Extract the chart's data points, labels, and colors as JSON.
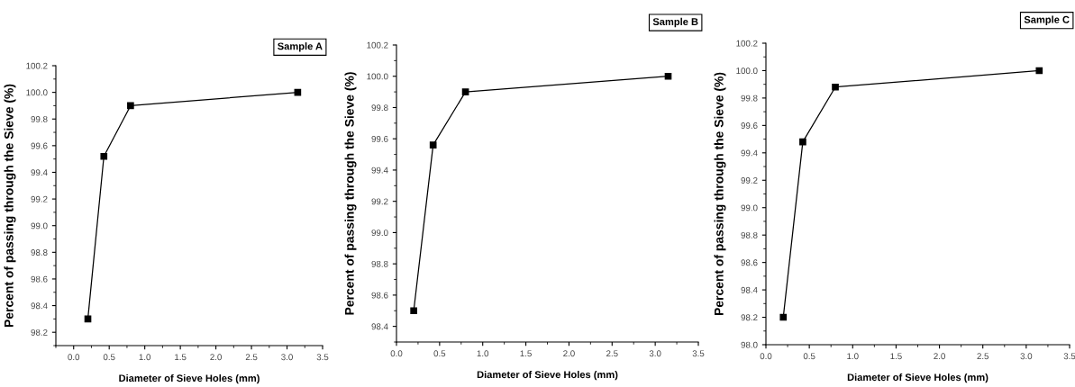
{
  "chart_data": [
    {
      "type": "line",
      "title": "Sample A",
      "xlabel": "Diameter of Sieve Holes (mm)",
      "ylabel": "Percent of passing through the Sieve (%)",
      "marker": "square",
      "line_style": "solid",
      "grid": false,
      "legend": false,
      "x": [
        0.2,
        0.425,
        0.8,
        3.15
      ],
      "series": [
        {
          "color": "#000000",
          "values": [
            98.3,
            99.52,
            99.9,
            100.0
          ]
        }
      ],
      "xlim": [
        -0.25,
        3.5
      ],
      "ylim": [
        98.1,
        100.2
      ],
      "xticks": [
        {
          "value": -0.25,
          "label": null
        },
        {
          "value": 0,
          "label": "0.0"
        },
        {
          "value": 0.25,
          "label": null
        },
        0.5,
        {
          "value": 0.75,
          "label": null
        },
        {
          "value": 1,
          "label": "1.0"
        },
        {
          "value": 1.25,
          "label": null
        },
        1.5,
        {
          "value": 1.75,
          "label": null
        },
        {
          "value": 2,
          "label": "2.0"
        },
        {
          "value": 2.25,
          "label": null
        },
        2.5,
        {
          "value": 2.75,
          "label": null
        },
        {
          "value": 3,
          "label": "3.0"
        },
        {
          "value": 3.25,
          "label": null
        },
        3.5
      ],
      "yticks": [
        {
          "value": 98.1,
          "label": null
        },
        98.2,
        {
          "value": 98.3,
          "label": null
        },
        98.4,
        {
          "value": 98.5,
          "label": null
        },
        98.6,
        {
          "value": 98.7,
          "label": null
        },
        98.8,
        {
          "value": 98.9,
          "label": null
        },
        {
          "value": 99,
          "label": "99.0"
        },
        {
          "value": 99.1,
          "label": null
        },
        99.2,
        {
          "value": 99.3,
          "label": null
        },
        99.4,
        {
          "value": 99.5,
          "label": null
        },
        99.6,
        {
          "value": 99.7,
          "label": null
        },
        99.8,
        {
          "value": 99.9,
          "label": null
        },
        {
          "value": 100,
          "label": "100.0"
        },
        {
          "value": 100.1,
          "label": null
        },
        100.2
      ]
    },
    {
      "type": "line",
      "title": "Sample B",
      "xlabel": "Diameter of Sieve Holes (mm)",
      "ylabel": "Percent of passing through the Sieve (%)",
      "marker": "square",
      "line_style": "solid",
      "grid": false,
      "legend": false,
      "x": [
        0.2,
        0.425,
        0.8,
        3.15
      ],
      "series": [
        {
          "color": "#000000",
          "values": [
            98.5,
            99.56,
            99.9,
            100.0
          ]
        }
      ],
      "xlim": [
        0.0,
        3.5
      ],
      "ylim": [
        98.3,
        100.2
      ],
      "xticks": [
        {
          "value": 0,
          "label": "0.0"
        },
        {
          "value": 0.25,
          "label": null
        },
        0.5,
        {
          "value": 0.75,
          "label": null
        },
        {
          "value": 1,
          "label": "1.0"
        },
        {
          "value": 1.25,
          "label": null
        },
        1.5,
        {
          "value": 1.75,
          "label": null
        },
        {
          "value": 2,
          "label": "2.0"
        },
        {
          "value": 2.25,
          "label": null
        },
        2.5,
        {
          "value": 2.75,
          "label": null
        },
        {
          "value": 3,
          "label": "3.0"
        },
        {
          "value": 3.25,
          "label": null
        },
        3.5
      ],
      "yticks": [
        {
          "value": 98.3,
          "label": null
        },
        98.4,
        {
          "value": 98.5,
          "label": null
        },
        98.6,
        {
          "value": 98.7,
          "label": null
        },
        98.8,
        {
          "value": 98.9,
          "label": null
        },
        {
          "value": 99,
          "label": "99.0"
        },
        {
          "value": 99.1,
          "label": null
        },
        99.2,
        {
          "value": 99.3,
          "label": null
        },
        99.4,
        {
          "value": 99.5,
          "label": null
        },
        99.6,
        {
          "value": 99.7,
          "label": null
        },
        99.8,
        {
          "value": 99.9,
          "label": null
        },
        {
          "value": 100,
          "label": "100.0"
        },
        {
          "value": 100.1,
          "label": null
        },
        100.2
      ]
    },
    {
      "type": "line",
      "title": "Sample C",
      "xlabel": "Diameter of Sieve Holes (mm)",
      "ylabel": "Percent of passing through the Sieve (%)",
      "marker": "square",
      "line_style": "solid",
      "grid": false,
      "legend": false,
      "x": [
        0.2,
        0.425,
        0.8,
        3.15
      ],
      "series": [
        {
          "color": "#000000",
          "values": [
            98.2,
            99.48,
            99.88,
            100.0
          ]
        }
      ],
      "xlim": [
        0.0,
        3.5
      ],
      "ylim": [
        98.0,
        100.2
      ],
      "xticks": [
        {
          "value": 0,
          "label": "0.0"
        },
        {
          "value": 0.25,
          "label": null
        },
        0.5,
        {
          "value": 0.75,
          "label": null
        },
        {
          "value": 1,
          "label": "1.0"
        },
        {
          "value": 1.25,
          "label": null
        },
        1.5,
        {
          "value": 1.75,
          "label": null
        },
        {
          "value": 2,
          "label": "2.0"
        },
        {
          "value": 2.25,
          "label": null
        },
        2.5,
        {
          "value": 2.75,
          "label": null
        },
        {
          "value": 3,
          "label": "3.0"
        },
        {
          "value": 3.25,
          "label": null
        },
        3.5
      ],
      "yticks": [
        {
          "value": 98,
          "label": "98.0"
        },
        {
          "value": 98.1,
          "label": null
        },
        98.2,
        {
          "value": 98.3,
          "label": null
        },
        98.4,
        {
          "value": 98.5,
          "label": null
        },
        98.6,
        {
          "value": 98.7,
          "label": null
        },
        98.8,
        {
          "value": 98.9,
          "label": null
        },
        {
          "value": 99,
          "label": "99.0"
        },
        {
          "value": 99.1,
          "label": null
        },
        99.2,
        {
          "value": 99.3,
          "label": null
        },
        99.4,
        {
          "value": 99.5,
          "label": null
        },
        99.6,
        {
          "value": 99.7,
          "label": null
        },
        99.8,
        {
          "value": 99.9,
          "label": null
        },
        {
          "value": 100,
          "label": "100.0"
        },
        {
          "value": 100.1,
          "label": null
        },
        100.2
      ]
    }
  ]
}
